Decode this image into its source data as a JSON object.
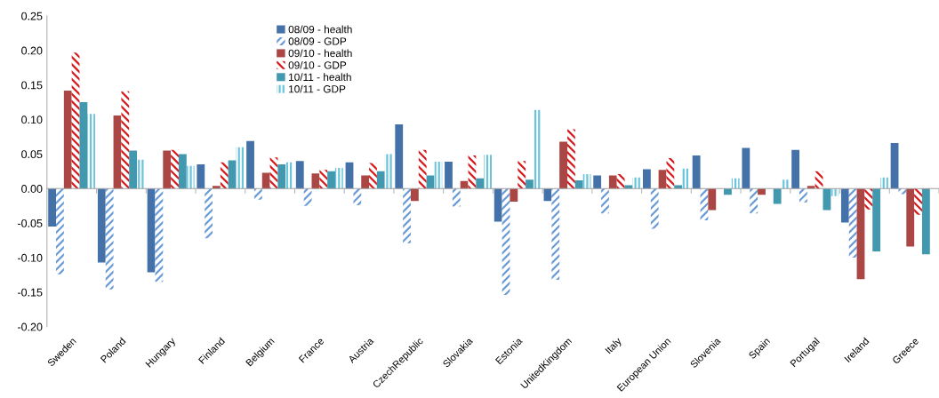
{
  "chart_data": {
    "type": "bar",
    "categories": [
      "Sweden",
      "Poland",
      "Hungary",
      "Finland",
      "Belgium",
      "France",
      "Austria",
      "CzechRepublic",
      "Slovakia",
      "Estonia",
      "UnitedKingdom",
      "Italy",
      "European Union",
      "Slovenia",
      "Spain",
      "Portugal",
      "Ireland",
      "Greece"
    ],
    "series": [
      {
        "name": "08/09 - health",
        "color": "#4472a8",
        "values": [
          -0.055,
          -0.107,
          -0.121,
          0.035,
          0.069,
          0.04,
          0.038,
          0.093,
          0.039,
          -0.048,
          -0.018,
          0.019,
          0.028,
          0.048,
          0.059,
          0.056,
          -0.049,
          0.066
        ]
      },
      {
        "name": "08/09 - GDP",
        "color": "#6a9bd8",
        "values": [
          -0.124,
          -0.146,
          -0.135,
          -0.072,
          -0.016,
          -0.025,
          -0.024,
          -0.079,
          -0.026,
          -0.154,
          -0.132,
          -0.036,
          -0.058,
          -0.046,
          -0.036,
          -0.02,
          -0.1,
          -0.008
        ]
      },
      {
        "name": "09/10 - health",
        "color": "#aa4643",
        "values": [
          0.142,
          0.106,
          0.055,
          0.004,
          0.023,
          0.022,
          0.019,
          -0.018,
          0.011,
          -0.019,
          0.068,
          0.019,
          0.027,
          -0.031,
          -0.009,
          0.004,
          -0.131,
          -0.084
        ]
      },
      {
        "name": "09/10 - GDP",
        "color": "#d7191c",
        "values": [
          0.197,
          0.141,
          0.056,
          0.038,
          0.045,
          0.027,
          0.037,
          0.056,
          0.048,
          0.04,
          0.086,
          0.021,
          0.044,
          0.0,
          0.0,
          0.025,
          -0.03,
          -0.038
        ]
      },
      {
        "name": "10/11 - health",
        "color": "#4198af",
        "values": [
          0.125,
          0.055,
          0.05,
          0.041,
          0.035,
          0.025,
          0.025,
          0.019,
          0.015,
          0.013,
          0.012,
          0.005,
          0.005,
          -0.009,
          -0.022,
          -0.031,
          -0.091,
          -0.095
        ]
      },
      {
        "name": "10/11 - GDP",
        "color": "#6cc4dc",
        "values": [
          0.108,
          0.042,
          0.033,
          0.06,
          0.038,
          0.03,
          0.05,
          0.039,
          0.049,
          0.114,
          0.021,
          0.016,
          0.029,
          0.015,
          0.013,
          -0.011,
          0.016,
          null
        ]
      }
    ],
    "ylim": [
      -0.2,
      0.25
    ],
    "yticks": [
      {
        "value": -0.2,
        "label": "-0.20"
      },
      {
        "value": -0.15,
        "label": "-0.15"
      },
      {
        "value": -0.1,
        "label": "-0.10"
      },
      {
        "value": -0.05,
        "label": "-0.05"
      },
      {
        "value": 0,
        "label": "0.00"
      },
      {
        "value": 0.05,
        "label": "0.05"
      },
      {
        "value": 0.1,
        "label": "0.10"
      },
      {
        "value": 0.15,
        "label": "0.15"
      },
      {
        "value": 0.2,
        "label": "0.20"
      },
      {
        "value": 0.25,
        "label": "0.25"
      }
    ],
    "legend": "top"
  }
}
